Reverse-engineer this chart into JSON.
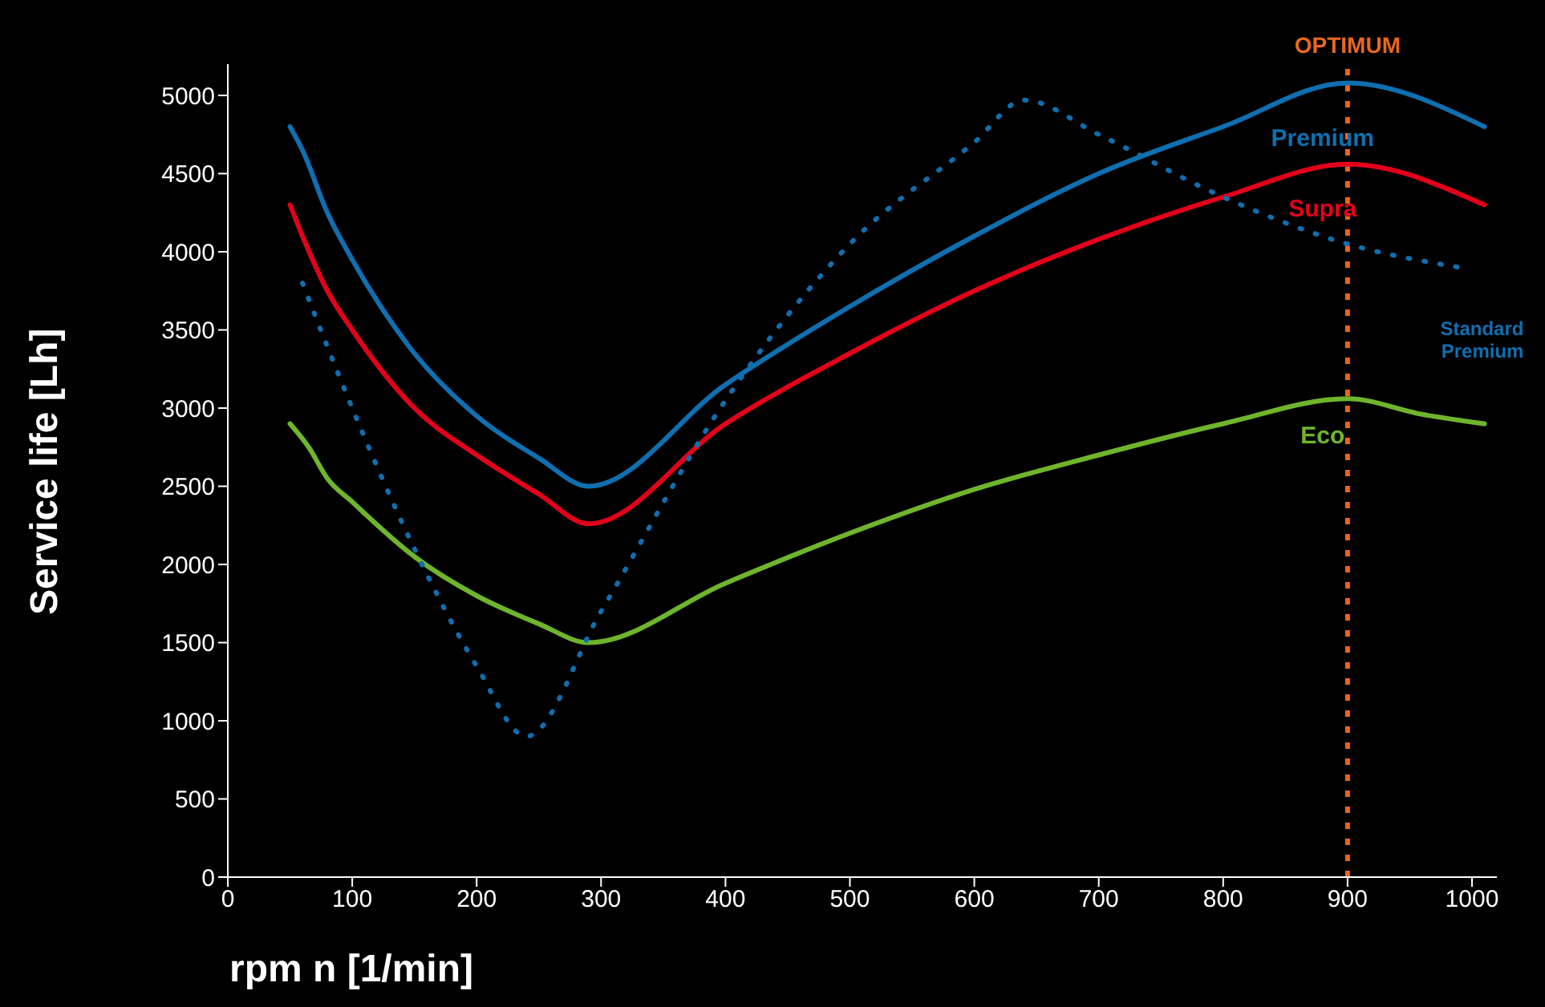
{
  "chart_data": {
    "type": "line",
    "xlabel": "rpm n [1/min]",
    "ylabel": "Service life [Lh]",
    "xlim": [
      0,
      1020
    ],
    "xticks": [
      0,
      100,
      200,
      300,
      400,
      500,
      600,
      700,
      800,
      900,
      1000
    ],
    "ylim": [
      0,
      5200
    ],
    "yticks": [
      0,
      500,
      1000,
      1500,
      2000,
      2500,
      3000,
      3500,
      4000,
      4500,
      5000
    ],
    "grid": false,
    "marker": "none",
    "series": [
      {
        "name": "Premium",
        "color": "#0f6fb0",
        "line_style": "solid",
        "x": [
          50,
          60,
          80,
          100,
          150,
          200,
          250,
          290,
          400,
          500,
          600,
          700,
          800,
          900,
          1010
        ],
        "values": [
          4800,
          4650,
          4250,
          3950,
          3350,
          2950,
          2680,
          2500,
          3150,
          3650,
          4100,
          4500,
          4800,
          5080,
          4800
        ]
      },
      {
        "name": "Supra",
        "color": "#e3001b",
        "line_style": "solid",
        "x": [
          50,
          60,
          80,
          100,
          150,
          200,
          250,
          290,
          400,
          500,
          600,
          700,
          800,
          900,
          1010
        ],
        "values": [
          4300,
          4100,
          3750,
          3500,
          3000,
          2700,
          2450,
          2260,
          2900,
          3350,
          3750,
          4080,
          4350,
          4560,
          4300
        ]
      },
      {
        "name": "Eco",
        "color": "#6fb52c",
        "line_style": "solid",
        "x": [
          50,
          65,
          80,
          100,
          150,
          200,
          250,
          290,
          400,
          500,
          600,
          700,
          800,
          900,
          960,
          1010
        ],
        "values": [
          2900,
          2750,
          2550,
          2400,
          2050,
          1800,
          1620,
          1500,
          1880,
          2200,
          2480,
          2700,
          2900,
          3060,
          2960,
          2900
        ]
      },
      {
        "name": "Standard Premium",
        "color": "#0f6fb0",
        "line_style": "dotted",
        "x": [
          60,
          100,
          150,
          200,
          240,
          300,
          400,
          500,
          600,
          640,
          700,
          800,
          900,
          990
        ],
        "values": [
          3800,
          3000,
          2100,
          1350,
          900,
          1700,
          3050,
          4050,
          4700,
          4970,
          4750,
          4350,
          4050,
          3900
        ]
      }
    ],
    "ref_lines": [
      {
        "axis": "x",
        "value": 900,
        "label": "OPTIMUM",
        "color": "#e8671e",
        "line_style": "dashed"
      }
    ]
  }
}
